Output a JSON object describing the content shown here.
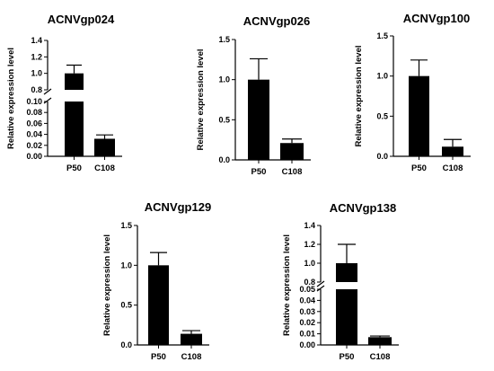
{
  "chart_data": [
    {
      "type": "bar",
      "title": "ACNVgp024",
      "ylabel": "Relative expression level",
      "xlabel": "",
      "categories": [
        "P50",
        "C108"
      ],
      "values": [
        1.0,
        0.032
      ],
      "errors": [
        0.1,
        0.007
      ],
      "broken_axis": true,
      "lower_ylim": [
        0,
        0.1
      ],
      "upper_ylim": [
        0.8,
        1.4
      ],
      "lower_ticks": [
        "0.00",
        "0.02",
        "0.04",
        "0.06",
        "0.08",
        "0.10"
      ],
      "upper_ticks": [
        "0.8",
        "1.0",
        "1.2",
        "1.4"
      ],
      "ylim": [
        0,
        1.4
      ]
    },
    {
      "type": "bar",
      "title": "ACNVgp026",
      "ylabel": "Relative expression level",
      "xlabel": "",
      "categories": [
        "P50",
        "C108"
      ],
      "values": [
        1.0,
        0.21
      ],
      "errors": [
        0.26,
        0.05
      ],
      "broken_axis": false,
      "ylim": [
        0,
        1.5
      ],
      "ticks": [
        "0.0",
        "0.5",
        "1.0",
        "1.5"
      ]
    },
    {
      "type": "bar",
      "title": "ACNVgp100",
      "ylabel": "Relative expression level",
      "xlabel": "",
      "categories": [
        "P50",
        "C108"
      ],
      "values": [
        1.0,
        0.12
      ],
      "errors": [
        0.2,
        0.09
      ],
      "broken_axis": false,
      "ylim": [
        0,
        1.5
      ],
      "ticks": [
        "0.0",
        "0.5",
        "1.0",
        "1.5"
      ]
    },
    {
      "type": "bar",
      "title": "ACNVgp129",
      "ylabel": "Relative expression level",
      "xlabel": "",
      "categories": [
        "P50",
        "C108"
      ],
      "values": [
        1.0,
        0.14
      ],
      "errors": [
        0.16,
        0.04
      ],
      "broken_axis": false,
      "ylim": [
        0,
        1.5
      ],
      "ticks": [
        "0.0",
        "0.5",
        "1.0",
        "1.5"
      ]
    },
    {
      "type": "bar",
      "title": "ACNVgp138",
      "ylabel": "Relative expression level",
      "xlabel": "",
      "categories": [
        "P50",
        "C108"
      ],
      "values": [
        1.0,
        0.007
      ],
      "errors": [
        0.2,
        0.001
      ],
      "broken_axis": true,
      "lower_ylim": [
        0,
        0.05
      ],
      "upper_ylim": [
        0.8,
        1.4
      ],
      "lower_ticks": [
        "0.00",
        "0.01",
        "0.02",
        "0.03",
        "0.04",
        "0.05"
      ],
      "upper_ticks": [
        "0.8",
        "1.0",
        "1.2",
        "1.4"
      ],
      "ylim": [
        0,
        1.4
      ]
    }
  ]
}
